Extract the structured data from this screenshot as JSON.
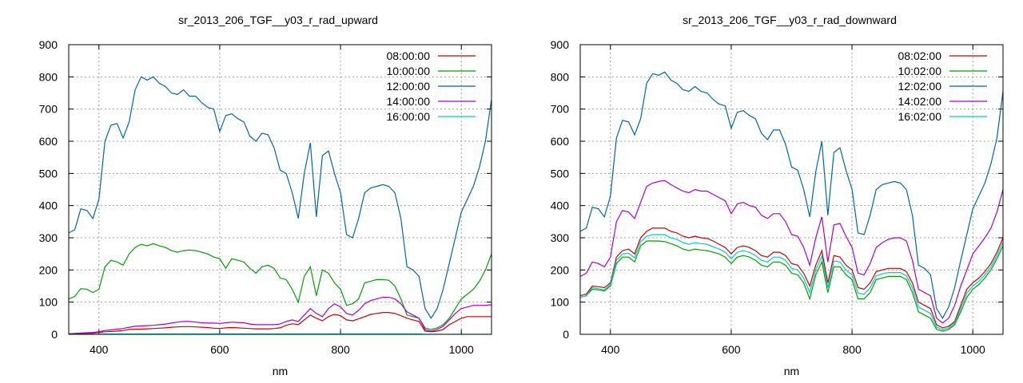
{
  "chart_data": [
    {
      "type": "line",
      "title": "sr_2013_206_TGF__y03_r_rad_upward",
      "xlabel": "nm",
      "ylabel": "",
      "xlim": [
        350,
        1050
      ],
      "ylim": [
        0,
        900
      ],
      "xticks": [
        400,
        600,
        800,
        1000
      ],
      "yticks": [
        0,
        100,
        200,
        300,
        400,
        500,
        600,
        700,
        800,
        900
      ],
      "grid": true,
      "legend_position": "top-right",
      "x": [
        350,
        360,
        370,
        380,
        390,
        400,
        410,
        420,
        430,
        440,
        450,
        460,
        470,
        480,
        490,
        500,
        510,
        520,
        530,
        540,
        550,
        560,
        570,
        580,
        590,
        600,
        610,
        620,
        630,
        640,
        650,
        660,
        670,
        680,
        690,
        700,
        710,
        720,
        730,
        740,
        750,
        760,
        770,
        780,
        790,
        800,
        810,
        820,
        830,
        840,
        850,
        860,
        870,
        880,
        890,
        900,
        910,
        920,
        930,
        940,
        950,
        960,
        970,
        980,
        990,
        1000,
        1010,
        1020,
        1030,
        1040,
        1050
      ],
      "series": [
        {
          "name": "08:00:00",
          "color": "#cc0000",
          "values": [
            1,
            2,
            2,
            3,
            3,
            6,
            8,
            9,
            10,
            12,
            15,
            16,
            16,
            17,
            18,
            19,
            20,
            22,
            23,
            24,
            24,
            23,
            22,
            21,
            19,
            18,
            20,
            21,
            20,
            19,
            18,
            17,
            17,
            17,
            18,
            20,
            28,
            33,
            30,
            45,
            60,
            50,
            42,
            55,
            62,
            58,
            45,
            42,
            48,
            55,
            62,
            65,
            68,
            68,
            65,
            58,
            50,
            45,
            40,
            10,
            8,
            10,
            15,
            30,
            40,
            50,
            55,
            55,
            55,
            55,
            55
          ]
        },
        {
          "name": "10:00:00",
          "color": "#00a000",
          "values": [
            110,
            118,
            142,
            140,
            130,
            140,
            210,
            230,
            225,
            215,
            250,
            270,
            280,
            275,
            282,
            275,
            270,
            260,
            255,
            260,
            262,
            260,
            255,
            250,
            240,
            235,
            205,
            235,
            230,
            225,
            205,
            190,
            210,
            215,
            205,
            175,
            170,
            140,
            100,
            180,
            210,
            120,
            200,
            190,
            160,
            140,
            90,
            95,
            110,
            160,
            165,
            170,
            170,
            168,
            150,
            110,
            60,
            55,
            50,
            20,
            15,
            20,
            30,
            50,
            80,
            110,
            125,
            140,
            165,
            200,
            250
          ]
        },
        {
          "name": "12:00:00",
          "color": "#0066aa",
          "values": [
            315,
            325,
            390,
            385,
            360,
            420,
            600,
            650,
            655,
            610,
            660,
            760,
            800,
            790,
            800,
            780,
            770,
            750,
            745,
            760,
            740,
            740,
            720,
            705,
            700,
            630,
            680,
            685,
            670,
            660,
            615,
            600,
            625,
            620,
            580,
            510,
            500,
            440,
            360,
            500,
            595,
            365,
            555,
            570,
            500,
            440,
            310,
            300,
            360,
            440,
            455,
            460,
            465,
            460,
            440,
            360,
            210,
            200,
            180,
            80,
            50,
            80,
            140,
            220,
            300,
            380,
            420,
            460,
            520,
            600,
            730
          ]
        },
        {
          "name": "14:00:00",
          "color": "#aa00cc",
          "values": [
            2,
            3,
            4,
            5,
            6,
            8,
            12,
            14,
            16,
            18,
            22,
            25,
            26,
            27,
            28,
            30,
            32,
            35,
            38,
            40,
            40,
            38,
            36,
            35,
            35,
            34,
            36,
            38,
            37,
            36,
            32,
            30,
            30,
            30,
            30,
            32,
            40,
            45,
            40,
            60,
            80,
            65,
            55,
            80,
            95,
            85,
            65,
            60,
            75,
            95,
            105,
            110,
            115,
            115,
            110,
            95,
            70,
            60,
            50,
            15,
            10,
            15,
            25,
            45,
            65,
            80,
            85,
            90,
            90,
            90,
            92
          ]
        },
        {
          "name": "16:00:00",
          "color": "#00cccc",
          "values": [
            0,
            0,
            0,
            0,
            0,
            0,
            1,
            1,
            1,
            1,
            1,
            1,
            1,
            1,
            1,
            1,
            1,
            1,
            1,
            1,
            1,
            1,
            1,
            1,
            1,
            1,
            1,
            1,
            1,
            1,
            1,
            1,
            1,
            1,
            1,
            1,
            1,
            1,
            1,
            1,
            1,
            1,
            1,
            1,
            1,
            1,
            1,
            1,
            1,
            1,
            1,
            1,
            1,
            1,
            1,
            1,
            1,
            1,
            1,
            0,
            0,
            0,
            0,
            0,
            0,
            0,
            0,
            0,
            0,
            0,
            0
          ]
        }
      ]
    },
    {
      "type": "line",
      "title": "sr_2013_206_TGF__y03_r_rad_downward",
      "xlabel": "nm",
      "ylabel": "",
      "xlim": [
        350,
        1050
      ],
      "ylim": [
        0,
        900
      ],
      "xticks": [
        400,
        600,
        800,
        1000
      ],
      "yticks": [
        0,
        100,
        200,
        300,
        400,
        500,
        600,
        700,
        800,
        900
      ],
      "grid": true,
      "legend_position": "top-right",
      "x": [
        350,
        360,
        370,
        380,
        390,
        400,
        410,
        420,
        430,
        440,
        450,
        460,
        470,
        480,
        490,
        500,
        510,
        520,
        530,
        540,
        550,
        560,
        570,
        580,
        590,
        600,
        610,
        620,
        630,
        640,
        650,
        660,
        670,
        680,
        690,
        700,
        710,
        720,
        730,
        740,
        750,
        760,
        770,
        780,
        790,
        800,
        810,
        820,
        830,
        840,
        850,
        860,
        870,
        880,
        890,
        900,
        910,
        920,
        930,
        940,
        950,
        960,
        970,
        980,
        990,
        1000,
        1010,
        1020,
        1030,
        1040,
        1050
      ],
      "series": [
        {
          "name": "08:02:00",
          "color": "#cc0000",
          "values": [
            120,
            125,
            150,
            148,
            145,
            160,
            240,
            260,
            265,
            250,
            300,
            320,
            330,
            330,
            330,
            320,
            315,
            305,
            300,
            305,
            300,
            298,
            290,
            280,
            270,
            250,
            270,
            275,
            270,
            260,
            245,
            240,
            255,
            255,
            245,
            220,
            215,
            190,
            150,
            215,
            260,
            160,
            245,
            240,
            215,
            200,
            145,
            140,
            160,
            195,
            200,
            205,
            205,
            205,
            195,
            160,
            100,
            90,
            80,
            30,
            20,
            25,
            40,
            90,
            140,
            160,
            175,
            195,
            220,
            255,
            300
          ]
        },
        {
          "name": "10:02:00",
          "color": "#00a000",
          "values": [
            115,
            120,
            140,
            138,
            135,
            150,
            220,
            240,
            240,
            225,
            275,
            290,
            290,
            290,
            288,
            282,
            275,
            265,
            260,
            265,
            262,
            260,
            255,
            250,
            240,
            220,
            240,
            245,
            240,
            230,
            215,
            210,
            225,
            225,
            215,
            190,
            185,
            160,
            110,
            185,
            225,
            130,
            210,
            210,
            185,
            170,
            110,
            110,
            130,
            170,
            175,
            180,
            180,
            180,
            170,
            130,
            70,
            60,
            50,
            15,
            10,
            15,
            30,
            70,
            115,
            140,
            155,
            175,
            200,
            235,
            275
          ]
        },
        {
          "name": "12:02:00",
          "color": "#0066aa",
          "values": [
            320,
            330,
            395,
            390,
            365,
            430,
            610,
            665,
            660,
            620,
            670,
            780,
            810,
            805,
            815,
            790,
            780,
            760,
            755,
            770,
            755,
            750,
            730,
            715,
            710,
            640,
            690,
            695,
            680,
            670,
            625,
            605,
            635,
            635,
            590,
            520,
            510,
            450,
            365,
            505,
            600,
            370,
            565,
            580,
            510,
            450,
            315,
            310,
            370,
            450,
            465,
            470,
            475,
            470,
            450,
            370,
            215,
            205,
            185,
            80,
            50,
            85,
            145,
            230,
            310,
            390,
            430,
            470,
            530,
            610,
            755
          ]
        },
        {
          "name": "14:02:00",
          "color": "#aa00cc",
          "values": [
            180,
            190,
            225,
            220,
            210,
            240,
            350,
            385,
            380,
            360,
            410,
            460,
            470,
            475,
            478,
            465,
            455,
            445,
            440,
            450,
            445,
            445,
            435,
            425,
            415,
            375,
            405,
            410,
            400,
            395,
            370,
            360,
            375,
            375,
            350,
            310,
            305,
            270,
            215,
            300,
            365,
            225,
            340,
            345,
            305,
            270,
            190,
            185,
            220,
            270,
            285,
            295,
            300,
            300,
            290,
            230,
            140,
            130,
            120,
            50,
            35,
            50,
            90,
            150,
            200,
            250,
            275,
            300,
            330,
            380,
            450
          ]
        },
        {
          "name": "16:02:00",
          "color": "#00cccc",
          "values": [
            115,
            120,
            145,
            142,
            138,
            155,
            230,
            250,
            252,
            238,
            288,
            305,
            310,
            310,
            310,
            300,
            295,
            285,
            280,
            285,
            282,
            280,
            272,
            265,
            255,
            235,
            255,
            260,
            255,
            245,
            230,
            225,
            240,
            240,
            230,
            205,
            200,
            175,
            130,
            200,
            243,
            145,
            228,
            225,
            200,
            185,
            128,
            125,
            145,
            182,
            188,
            192,
            192,
            192,
            182,
            145,
            85,
            75,
            65,
            22,
            15,
            20,
            35,
            80,
            128,
            150,
            165,
            185,
            210,
            245,
            287
          ]
        }
      ]
    }
  ]
}
